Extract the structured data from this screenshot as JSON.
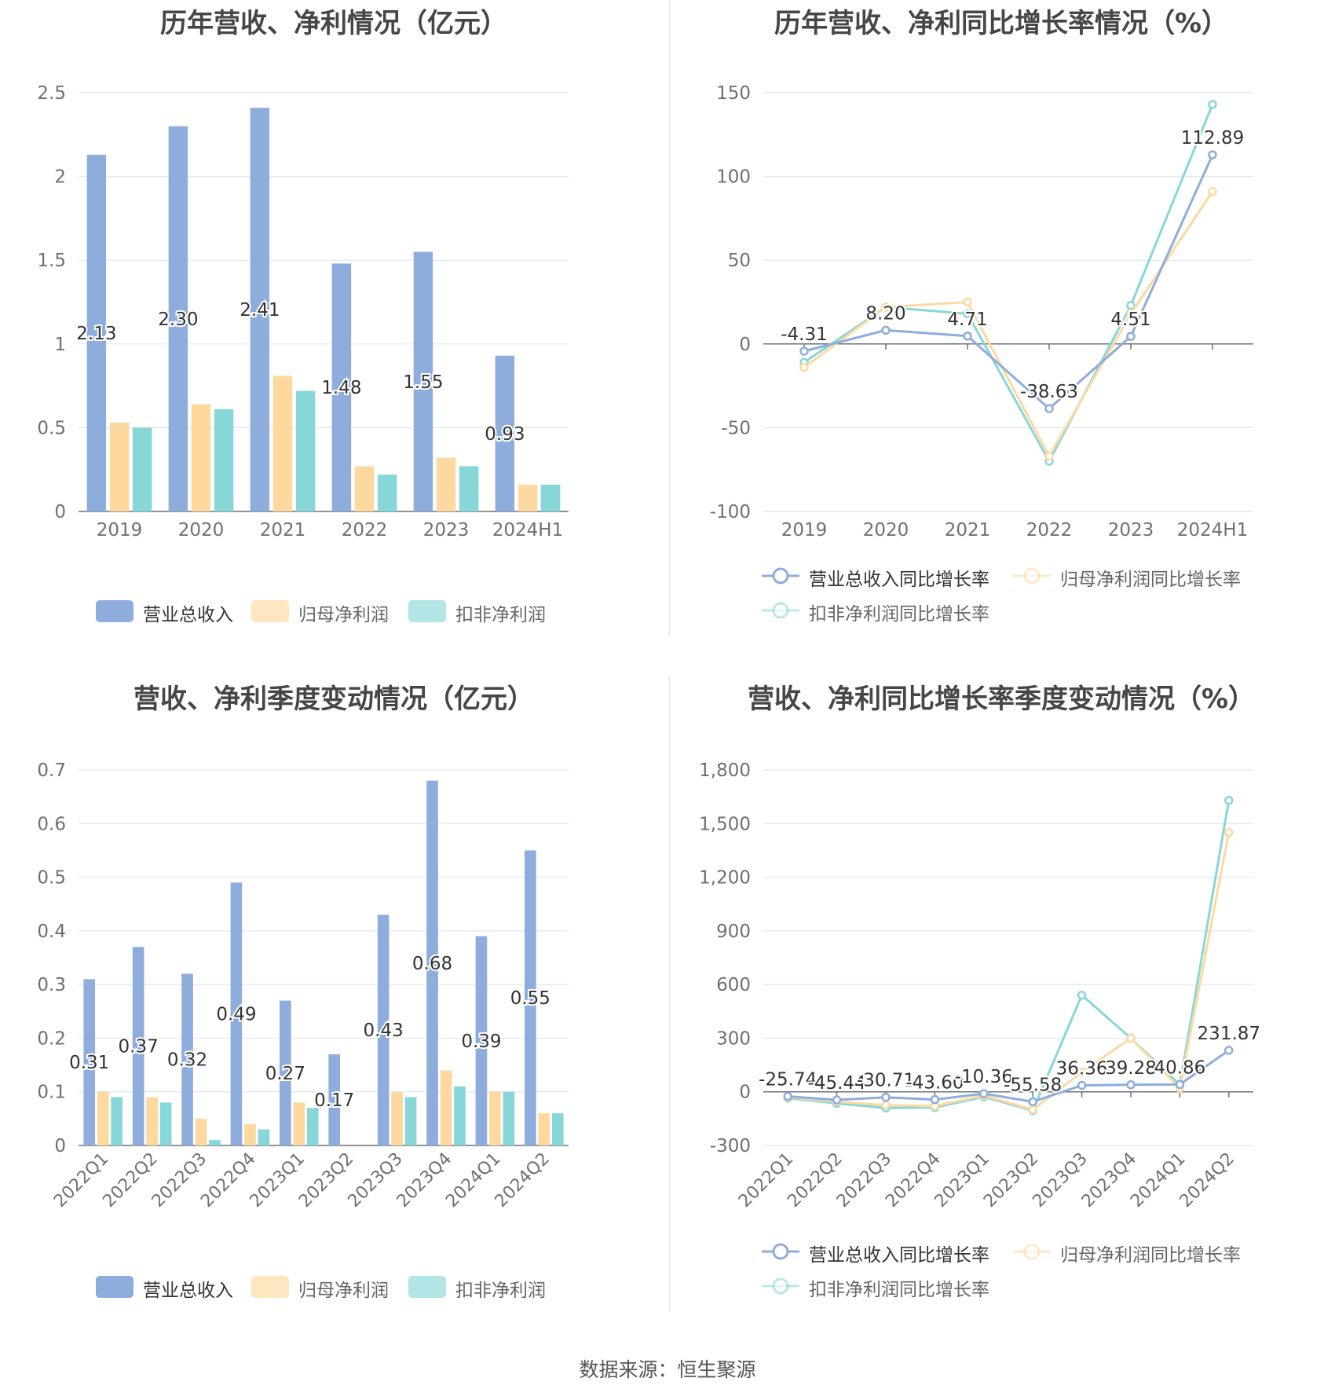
{
  "source": "数据来源：恒生聚源",
  "colors": {
    "revenue": "#8eaddc",
    "net_profit": "#fdd9a0",
    "deducted_profit": "#87d7d9",
    "grid": "#e0e6f1",
    "axis": "#6e7079"
  },
  "legend_bar": [
    "营业总收入",
    "归母净利润",
    "扣非净利润"
  ],
  "legend_line": [
    "营业总收入同比增长率",
    "归母净利润同比增长率",
    "扣非净利润同比增长率"
  ],
  "panels": {
    "p1": {
      "title": "历年营收、净利情况（亿元）"
    },
    "p2": {
      "title": "历年营收、净利同比增长率情况（%）"
    },
    "p3": {
      "title": "营收、净利季度变动情况（亿元）"
    },
    "p4": {
      "title": "营收、净利同比增长率季度变动情况（%）"
    }
  },
  "chart_data": [
    {
      "type": "bar",
      "title": "历年营收、净利情况（亿元）",
      "categories": [
        "2019",
        "2020",
        "2021",
        "2022",
        "2023",
        "2024H1"
      ],
      "ylim": [
        0,
        2.5
      ],
      "yticks": [
        "0",
        "0.5",
        "1",
        "1.5",
        "2",
        "2.5"
      ],
      "series": [
        {
          "name": "营业总收入",
          "values": [
            2.13,
            2.3,
            2.41,
            1.48,
            1.55,
            0.93
          ],
          "labels": [
            "2.13",
            "2.30",
            "2.41",
            "1.48",
            "1.55",
            "0.93"
          ]
        },
        {
          "name": "归母净利润",
          "values": [
            0.53,
            0.64,
            0.81,
            0.27,
            0.32,
            0.16
          ]
        },
        {
          "name": "扣非净利润",
          "values": [
            0.5,
            0.61,
            0.72,
            0.22,
            0.27,
            0.16
          ]
        }
      ],
      "legend": "bottom",
      "grid": true
    },
    {
      "type": "line",
      "title": "历年营收、净利同比增长率情况（%）",
      "categories": [
        "2019",
        "2020",
        "2021",
        "2022",
        "2023",
        "2024H1"
      ],
      "ylim": [
        -100,
        150
      ],
      "yticks": [
        "-100",
        "-50",
        "0",
        "50",
        "100",
        "150"
      ],
      "series": [
        {
          "name": "营业总收入同比增长率",
          "values": [
            -4.31,
            8.2,
            4.71,
            -38.63,
            4.51,
            112.89
          ],
          "labels": [
            "-4.31",
            "8.20",
            "4.71",
            "-38.63",
            "4.51",
            "112.89"
          ]
        },
        {
          "name": "归母净利润同比增长率",
          "values": [
            -14,
            22,
            25,
            -67,
            18,
            91
          ]
        },
        {
          "name": "扣非净利润同比增长率",
          "values": [
            -11,
            22,
            18,
            -70,
            23,
            143
          ]
        }
      ],
      "legend": "bottom",
      "grid": true
    },
    {
      "type": "bar",
      "title": "营收、净利季度变动情况（亿元）",
      "categories": [
        "2022Q1",
        "2022Q2",
        "2022Q3",
        "2022Q4",
        "2023Q1",
        "2023Q2",
        "2023Q3",
        "2023Q4",
        "2024Q1",
        "2024Q2"
      ],
      "ylim": [
        0,
        0.7
      ],
      "yticks": [
        "0",
        "0.1",
        "0.2",
        "0.3",
        "0.4",
        "0.5",
        "0.6",
        "0.7"
      ],
      "series": [
        {
          "name": "营业总收入",
          "values": [
            0.31,
            0.37,
            0.32,
            0.49,
            0.27,
            0.17,
            0.43,
            0.68,
            0.39,
            0.55
          ],
          "labels": [
            "0.31",
            "0.37",
            "0.32",
            "0.49",
            "0.27",
            "0.17",
            "0.43",
            "0.68",
            "0.39",
            "0.55"
          ]
        },
        {
          "name": "归母净利润",
          "values": [
            0.1,
            0.09,
            0.05,
            0.04,
            0.08,
            0.0,
            0.1,
            0.14,
            0.1,
            0.06
          ]
        },
        {
          "name": "扣非净利润",
          "values": [
            0.09,
            0.08,
            0.01,
            0.03,
            0.07,
            0.0,
            0.09,
            0.11,
            0.1,
            0.06
          ]
        }
      ],
      "legend": "bottom",
      "grid": true
    },
    {
      "type": "line",
      "title": "营收、净利同比增长率季度变动情况（%）",
      "categories": [
        "2022Q1",
        "2022Q2",
        "2022Q3",
        "2022Q4",
        "2023Q1",
        "2023Q2",
        "2023Q3",
        "2023Q4",
        "2024Q1",
        "2024Q2"
      ],
      "ylim": [
        -300,
        1800
      ],
      "yticks": [
        "-300",
        "0",
        "300",
        "600",
        "900",
        "1,200",
        "1,500",
        "1,800"
      ],
      "series": [
        {
          "name": "营业总收入同比增长率",
          "values": [
            -25.74,
            -45.44,
            -30.71,
            -43.6,
            -10.36,
            -55.58,
            36.36,
            39.28,
            40.86,
            231.87
          ],
          "labels": [
            "-25.74",
            "-45.44",
            "-30.71",
            "-43.60",
            "-10.36",
            "-55.58",
            "36.36",
            "39.28",
            "40.86",
            "231.87"
          ]
        },
        {
          "name": "归母净利润同比增长率",
          "values": [
            -30,
            -55,
            -75,
            -80,
            -20,
            -100,
            110,
            300,
            20,
            1450
          ]
        },
        {
          "name": "扣非净利润同比增长率",
          "values": [
            -35,
            -65,
            -90,
            -88,
            -28,
            -105,
            540,
            300,
            40,
            1630
          ]
        }
      ],
      "legend": "bottom",
      "grid": true
    }
  ]
}
